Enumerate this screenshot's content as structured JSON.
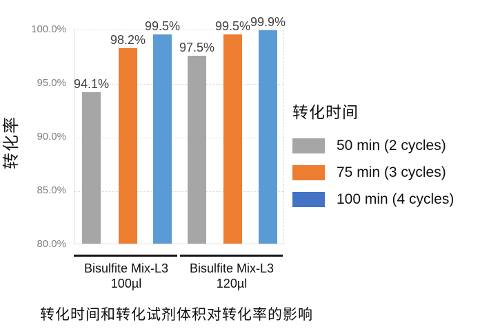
{
  "chart_data": {
    "type": "bar",
    "title": "转化时间和转化试剂体积对转化率的影响",
    "ylabel": "转化率",
    "ylim": [
      80,
      100
    ],
    "ytick_step": 5,
    "yticks": [
      {
        "value": 100,
        "label": "100.0%"
      },
      {
        "value": 95,
        "label": "95.0%"
      },
      {
        "value": 90,
        "label": "90.0%"
      },
      {
        "value": 85,
        "label": "85.0%"
      },
      {
        "value": 80,
        "label": "80.0%"
      }
    ],
    "grid": true,
    "legend_position": "right",
    "legend_title": "转化时间",
    "categories": [
      {
        "line1": "Bisulfite Mix-L3",
        "line2": "100µl"
      },
      {
        "line1": "Bisulfite Mix-L3",
        "line2": "120µl"
      }
    ],
    "series": [
      {
        "name": "50 min (2 cycles)",
        "color": "#A6A6A6",
        "legend_color": "#A6A6A6",
        "values": [
          94.1,
          97.5
        ],
        "labels": [
          "94.1%",
          "97.5%"
        ]
      },
      {
        "name": "75 min (3 cycles)",
        "color": "#ED7D31",
        "legend_color": "#ED7D31",
        "values": [
          98.2,
          99.5
        ],
        "labels": [
          "98.2%",
          "99.5%"
        ]
      },
      {
        "name": "100 min (4 cycles)",
        "color": "#5B9BD5",
        "legend_color": "#4472C4",
        "values": [
          99.5,
          99.9
        ],
        "labels": [
          "99.5%",
          "99.9%"
        ]
      }
    ],
    "colors": {
      "tick_label": "#7F7F7F",
      "data_label": "#404040",
      "gridline": "#DEDEDE",
      "text": "#111111",
      "group_rule": "#151515"
    }
  }
}
